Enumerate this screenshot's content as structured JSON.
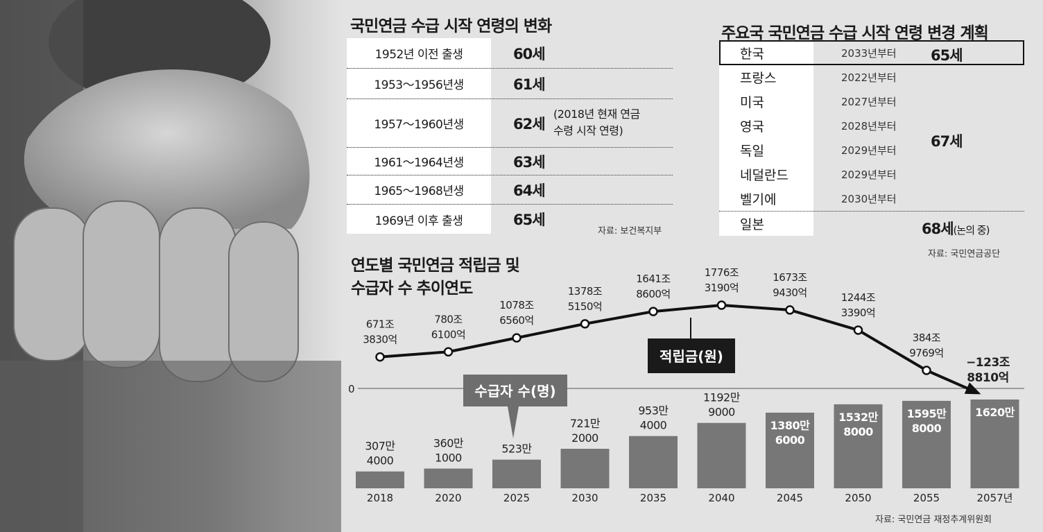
{
  "age_table": {
    "title": "국민연금 수급 시작 연령의 변화",
    "rows": [
      {
        "cohort": "1952년 이전 출생",
        "age": "60세"
      },
      {
        "cohort": "1953～1956년생",
        "age": "61세"
      },
      {
        "cohort": "1957～1960년생",
        "age": "62세",
        "note_line1": "(2018년 현재 연금",
        "note_line2": "수령 시작 연령)"
      },
      {
        "cohort": "1961～1964년생",
        "age": "63세"
      },
      {
        "cohort": "1965～1968년생",
        "age": "64세"
      },
      {
        "cohort": "1969년 이후 출생",
        "age": "65세"
      }
    ],
    "source": "자료: 보건복지부"
  },
  "country_table": {
    "title": "주요국 국민연금 수급 시작 연령 변경 계획",
    "rows": [
      {
        "country": "한국",
        "from": "2033년부터"
      },
      {
        "country": "프랑스",
        "from": "2022년부터"
      },
      {
        "country": "미국",
        "from": "2027년부터"
      },
      {
        "country": "영국",
        "from": "2028년부터"
      },
      {
        "country": "독일",
        "from": "2029년부터"
      },
      {
        "country": "네덜란드",
        "from": "2029년부터"
      },
      {
        "country": "벨기에",
        "from": "2030년부터"
      },
      {
        "country": "일본",
        "from": ""
      }
    ],
    "korea_age": "65세",
    "group_age": "67세",
    "japan_age": "68세",
    "japan_note": "(논의 중)",
    "source": "자료: 국민연금공단"
  },
  "chart": {
    "title_line1": "연도별 국민연금 적립금 및",
    "title_line2": "수급자 수 추이연도",
    "source": "자료: 국민연금 재정추계위원회",
    "zero_label": "0"
  },
  "chart_data": {
    "type": "line+bar",
    "x": [
      "2018",
      "2020",
      "2025",
      "2030",
      "2035",
      "2040",
      "2045",
      "2050",
      "2055",
      "2057년"
    ],
    "series": [
      {
        "name": "적립금(원)",
        "type": "line",
        "values_in_eok": [
          6713830,
          7806100,
          10786560,
          13785150,
          16418600,
          17763190,
          16739430,
          12443390,
          3849769,
          -1238810
        ],
        "labels": [
          [
            "671조",
            "3830억"
          ],
          [
            "780조",
            "6100억"
          ],
          [
            "1078조",
            "6560억"
          ],
          [
            "1378조",
            "5150억"
          ],
          [
            "1641조",
            "8600억"
          ],
          [
            "1776조",
            "3190억"
          ],
          [
            "1673조",
            "9430억"
          ],
          [
            "1244조",
            "3390억"
          ],
          [
            "384조",
            "9769억"
          ],
          [
            "−123조",
            "8810억"
          ]
        ]
      },
      {
        "name": "수급자 수(명)",
        "type": "bar",
        "values": [
          3074000,
          3601000,
          5230000,
          7212000,
          9534000,
          11929000,
          13806000,
          15328000,
          15958000,
          16200000
        ],
        "labels": [
          [
            "307만",
            "4000"
          ],
          [
            "360만",
            "1000"
          ],
          [
            "523만"
          ],
          [
            "721만",
            "2000"
          ],
          [
            "953만",
            "4000"
          ],
          [
            "1192만",
            "9000"
          ],
          [
            "1380만",
            "6000"
          ],
          [
            "1532만",
            "8000"
          ],
          [
            "1595만",
            "8000"
          ],
          [
            "1620만"
          ]
        ]
      }
    ],
    "colors": {
      "line": "#111111",
      "bar": "#777777",
      "callout": "#1a1a1a",
      "callout2": "#6e6e6e"
    }
  }
}
